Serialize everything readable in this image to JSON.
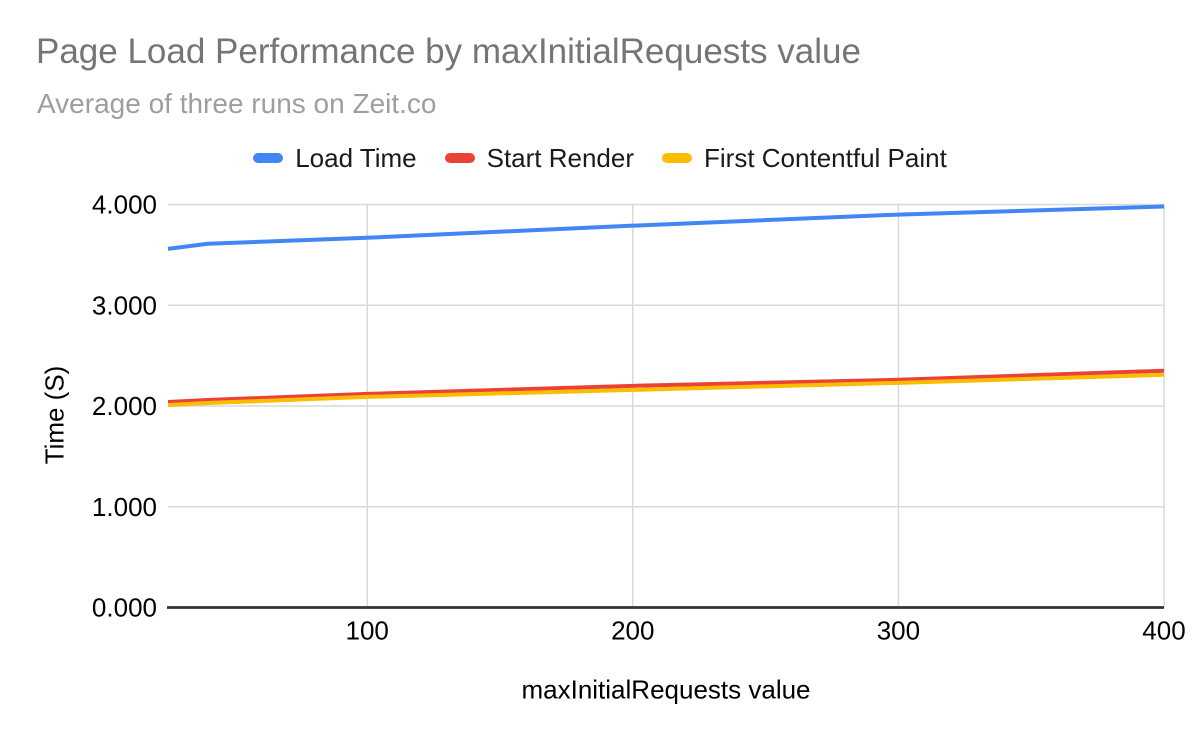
{
  "chart_data": {
    "type": "line",
    "title": "Page Load Performance by maxInitialRequests value",
    "subtitle": "Average of three runs on Zeit.co",
    "xlabel": "maxInitialRequests value",
    "ylabel": "Time (S)",
    "xlim": [
      25,
      400
    ],
    "ylim": [
      0,
      4
    ],
    "grid": true,
    "legend_position": "top",
    "x": [
      25,
      40,
      100,
      200,
      300,
      400
    ],
    "series": [
      {
        "name": "Load Time",
        "color": "#4285f4",
        "values": [
          3.56,
          3.61,
          3.67,
          3.79,
          3.9,
          3.98
        ]
      },
      {
        "name": "Start Render",
        "color": "#ea4335",
        "values": [
          2.04,
          2.06,
          2.12,
          2.2,
          2.26,
          2.35
        ]
      },
      {
        "name": "First Contentful Paint",
        "color": "#fbbc04",
        "values": [
          2.01,
          2.03,
          2.09,
          2.16,
          2.23,
          2.31
        ]
      }
    ],
    "y_ticks": [
      {
        "value": 0,
        "label": "0.000"
      },
      {
        "value": 1,
        "label": "1.000"
      },
      {
        "value": 2,
        "label": "2.000"
      },
      {
        "value": 3,
        "label": "3.000"
      },
      {
        "value": 4,
        "label": "4.000"
      }
    ],
    "x_ticks": [
      {
        "value": 100,
        "label": "100"
      },
      {
        "value": 200,
        "label": "200"
      },
      {
        "value": 300,
        "label": "300"
      },
      {
        "value": 400,
        "label": "400"
      }
    ],
    "colors": {
      "background": "#ffffff",
      "title_text": "#757575",
      "subtitle_text": "#9e9e9e",
      "legend_text": "#1a1a1a",
      "tick_text": "#000000",
      "gridline": "#d9d9d9",
      "axis_line": "#333333"
    }
  }
}
